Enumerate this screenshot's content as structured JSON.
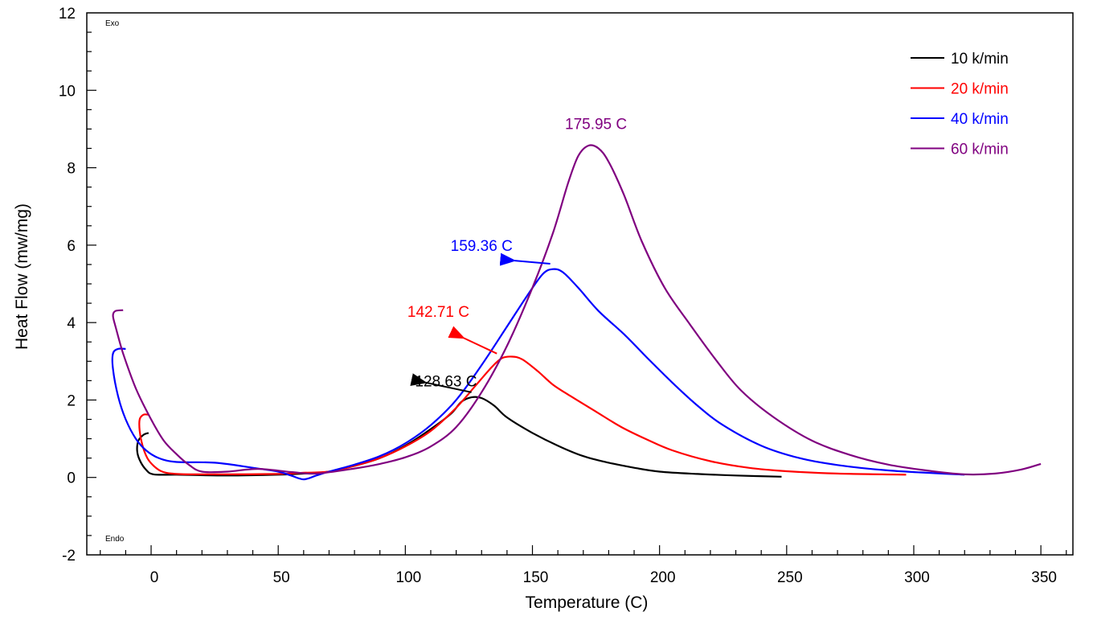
{
  "chart_data": {
    "type": "line",
    "title": "",
    "xlabel": "Temperature (C)",
    "ylabel": "Heat Flow (mw/mg)",
    "xlim": [
      -25.3,
      362.6
    ],
    "ylim": [
      -2,
      12
    ],
    "x_ticks": [
      0,
      50,
      100,
      150,
      200,
      250,
      300,
      350
    ],
    "x_minor_step": 10,
    "y_ticks": [
      -2,
      0,
      2,
      4,
      6,
      8,
      10,
      12
    ],
    "y_minor_step": 0.5,
    "grid": false,
    "corner_labels": {
      "top": "Exo",
      "bottom": "Endo"
    },
    "legend": {
      "position": "top-right"
    },
    "series": [
      {
        "name": "10 k/min",
        "color": "#000000",
        "points": [
          [
            -1,
            1.15
          ],
          [
            -3,
            1.1
          ],
          [
            -5,
            0.95
          ],
          [
            -5.5,
            0.7
          ],
          [
            -4.5,
            0.45
          ],
          [
            -2,
            0.2
          ],
          [
            1,
            0.08
          ],
          [
            10,
            0.07
          ],
          [
            30,
            0.05
          ],
          [
            50,
            0.07
          ],
          [
            60,
            0.1
          ],
          [
            70,
            0.15
          ],
          [
            80,
            0.3
          ],
          [
            90,
            0.5
          ],
          [
            100,
            0.82
          ],
          [
            110,
            1.25
          ],
          [
            118,
            1.65
          ],
          [
            122,
            1.95
          ],
          [
            126,
            2.07
          ],
          [
            130,
            2.05
          ],
          [
            135,
            1.85
          ],
          [
            140,
            1.55
          ],
          [
            150,
            1.15
          ],
          [
            160,
            0.82
          ],
          [
            170,
            0.55
          ],
          [
            180,
            0.38
          ],
          [
            190,
            0.25
          ],
          [
            200,
            0.15
          ],
          [
            215,
            0.09
          ],
          [
            230,
            0.05
          ],
          [
            248,
            0.02
          ]
        ],
        "peak_annotation": {
          "text": "128.63 C",
          "label_at": [
            116,
            2.35
          ],
          "arrow_from": [
            126,
            2.2
          ],
          "arrow_to": [
            108,
            2.45
          ]
        }
      },
      {
        "name": "20 k/min",
        "color": "#ff0000",
        "points": [
          [
            -1,
            1.62
          ],
          [
            -3,
            1.62
          ],
          [
            -4.5,
            1.5
          ],
          [
            -4.5,
            1.2
          ],
          [
            -3.5,
            0.85
          ],
          [
            -1.5,
            0.5
          ],
          [
            1,
            0.3
          ],
          [
            4,
            0.16
          ],
          [
            8,
            0.1
          ],
          [
            15,
            0.08
          ],
          [
            30,
            0.08
          ],
          [
            50,
            0.09
          ],
          [
            60,
            0.12
          ],
          [
            70,
            0.15
          ],
          [
            80,
            0.3
          ],
          [
            90,
            0.5
          ],
          [
            100,
            0.8
          ],
          [
            110,
            1.2
          ],
          [
            120,
            1.8
          ],
          [
            128,
            2.4
          ],
          [
            134,
            2.85
          ],
          [
            138,
            3.08
          ],
          [
            142,
            3.12
          ],
          [
            146,
            3.05
          ],
          [
            152,
            2.75
          ],
          [
            158,
            2.4
          ],
          [
            165,
            2.1
          ],
          [
            175,
            1.7
          ],
          [
            185,
            1.3
          ],
          [
            195,
            0.98
          ],
          [
            205,
            0.7
          ],
          [
            220,
            0.42
          ],
          [
            235,
            0.25
          ],
          [
            250,
            0.16
          ],
          [
            270,
            0.1
          ],
          [
            297,
            0.07
          ]
        ],
        "peak_annotation": {
          "text": "142.71 C",
          "label_at": [
            113,
            4.15
          ],
          "arrow_from": [
            136,
            3.2
          ],
          "arrow_to": [
            123,
            3.6
          ]
        }
      },
      {
        "name": "40 k/min",
        "color": "#0000ff",
        "points": [
          [
            -10,
            3.32
          ],
          [
            -13,
            3.32
          ],
          [
            -15,
            3.2
          ],
          [
            -15,
            2.8
          ],
          [
            -13,
            2.1
          ],
          [
            -10,
            1.5
          ],
          [
            -6,
            1.0
          ],
          [
            -2,
            0.7
          ],
          [
            3,
            0.5
          ],
          [
            10,
            0.4
          ],
          [
            25,
            0.38
          ],
          [
            40,
            0.25
          ],
          [
            50,
            0.15
          ],
          [
            55,
            0.05
          ],
          [
            60,
            -0.05
          ],
          [
            65,
            0.05
          ],
          [
            70,
            0.15
          ],
          [
            80,
            0.33
          ],
          [
            90,
            0.55
          ],
          [
            100,
            0.88
          ],
          [
            110,
            1.35
          ],
          [
            120,
            2.0
          ],
          [
            130,
            2.9
          ],
          [
            140,
            3.9
          ],
          [
            148,
            4.7
          ],
          [
            154,
            5.25
          ],
          [
            158,
            5.38
          ],
          [
            162,
            5.3
          ],
          [
            168,
            4.9
          ],
          [
            176,
            4.3
          ],
          [
            186,
            3.7
          ],
          [
            195,
            3.1
          ],
          [
            205,
            2.45
          ],
          [
            215,
            1.85
          ],
          [
            225,
            1.35
          ],
          [
            240,
            0.82
          ],
          [
            255,
            0.5
          ],
          [
            270,
            0.32
          ],
          [
            290,
            0.18
          ],
          [
            320,
            0.07
          ]
        ],
        "peak_annotation": {
          "text": "159.36 C",
          "label_at": [
            130,
            5.85
          ],
          "arrow_from": [
            157,
            5.52
          ],
          "arrow_to": [
            143,
            5.6
          ]
        }
      },
      {
        "name": "60 k/min",
        "color": "#800080",
        "points": [
          [
            -11,
            4.32
          ],
          [
            -14,
            4.3
          ],
          [
            -15,
            4.18
          ],
          [
            -14,
            3.9
          ],
          [
            -11,
            3.2
          ],
          [
            -6,
            2.3
          ],
          [
            0,
            1.5
          ],
          [
            5,
            0.95
          ],
          [
            10,
            0.6
          ],
          [
            15,
            0.32
          ],
          [
            20,
            0.15
          ],
          [
            30,
            0.15
          ],
          [
            42,
            0.22
          ],
          [
            55,
            0.14
          ],
          [
            65,
            0.1
          ],
          [
            80,
            0.23
          ],
          [
            90,
            0.35
          ],
          [
            100,
            0.52
          ],
          [
            110,
            0.8
          ],
          [
            120,
            1.3
          ],
          [
            130,
            2.2
          ],
          [
            140,
            3.4
          ],
          [
            150,
            4.9
          ],
          [
            158,
            6.3
          ],
          [
            164,
            7.6
          ],
          [
            168,
            8.3
          ],
          [
            172,
            8.57
          ],
          [
            176,
            8.5
          ],
          [
            180,
            8.15
          ],
          [
            186,
            7.3
          ],
          [
            193,
            6.1
          ],
          [
            202,
            4.9
          ],
          [
            212,
            3.95
          ],
          [
            222,
            3.05
          ],
          [
            232,
            2.25
          ],
          [
            245,
            1.55
          ],
          [
            260,
            0.95
          ],
          [
            275,
            0.58
          ],
          [
            290,
            0.33
          ],
          [
            305,
            0.18
          ],
          [
            320,
            0.08
          ],
          [
            332,
            0.1
          ],
          [
            342,
            0.2
          ],
          [
            350,
            0.35
          ]
        ],
        "peak_annotation": {
          "text": "175.95 C",
          "label_at": [
            175,
            9.0
          ]
        }
      }
    ]
  }
}
